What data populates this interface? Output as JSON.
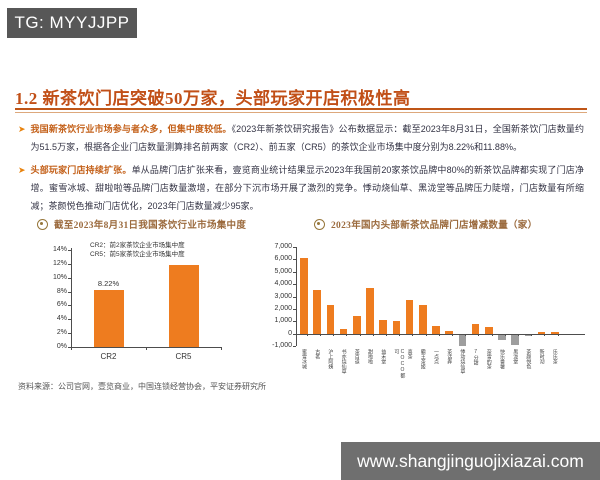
{
  "watermarks": {
    "top_left": "TG: MYYJJPP",
    "bottom_right": "www.shangjinguojixiazai.com"
  },
  "title": "1.2 新茶饮门店突破50万家，头部玩家开店积极性高",
  "bullets": [
    {
      "lead": "我国新茶饮行业市场参与者众多，但集中度较低。",
      "text": "《2023年新茶饮研究报告》公布数据显示：截至2023年8月31日，全国新茶饮门店数量约为51.5万家，根据各企业门店数量测算排名前两家（CR2）、前五家（CR5）的茶饮企业市场集中度分别为8.22%和11.88%。"
    },
    {
      "lead": "头部玩家门店持续扩张。",
      "text": "单从品牌门店扩张来看，壹览商业统计结果显示2023年我国前20家茶饮品牌中80%的新茶饮品牌都实现了门店净增。蜜雪冰城、甜啦啦等品牌门店数量激增，在部分下沉市场开展了激烈的竞争。悸动烧仙草、黑泷堂等品牌压力陡增，门店数量有所缩减；茶颜悦色推动门店优化，2023年门店数量减少95家。"
    }
  ],
  "source": "资料来源：公司官网，壹览商业，中国连锁经营协会，平安证券研究所",
  "chart_data": [
    {
      "type": "bar",
      "title": "截至2023年8月31日我国茶饮行业市场集中度",
      "legend": [
        "CR2：前2家茶饮企业市场集中度",
        "CR5：前5家茶饮企业市场集中度"
      ],
      "legend_position": "top-inside",
      "categories": [
        "CR2",
        "CR5"
      ],
      "values": [
        8.22,
        11.88
      ],
      "data_labels": [
        "8.22%",
        ""
      ],
      "ylim": [
        0,
        14
      ],
      "yticks": [
        "0%",
        "2%",
        "4%",
        "6%",
        "8%",
        "10%",
        "12%",
        "14%"
      ],
      "grid": false,
      "bar_color": "#ee7c1f"
    },
    {
      "type": "bar",
      "title": "2023年国内头部新茶饮品牌门店增减数量（家）",
      "categories": [
        "蜜雪冰城",
        "古茗",
        "沪上阿姨",
        "书亦烧仙草",
        "茶百道",
        "甜啦啦",
        "益禾堂",
        "COCO都可",
        "喜茶",
        "霸王茶姬",
        "一点点",
        "茶话弄",
        "悸动烧仙草",
        "7分甜",
        "奈雪的茶",
        "快乐番薯",
        "黑泷堂",
        "茶颜悦色",
        "新时沏",
        "乐乐茶"
      ],
      "values": [
        6100,
        3500,
        2300,
        400,
        1400,
        3700,
        1100,
        1000,
        2700,
        2300,
        600,
        200,
        -900,
        800,
        500,
        -400,
        -800,
        -95,
        100,
        100
      ],
      "ylim": [
        -1000,
        7000
      ],
      "yticks": [
        "7,000",
        "6,000",
        "5,000",
        "4,000",
        "3,000",
        "2,000",
        "1,000",
        "0",
        "-1,000"
      ],
      "grid": false,
      "positive_color": "#ee7c1f",
      "negative_color": "#9e9e9e"
    }
  ]
}
